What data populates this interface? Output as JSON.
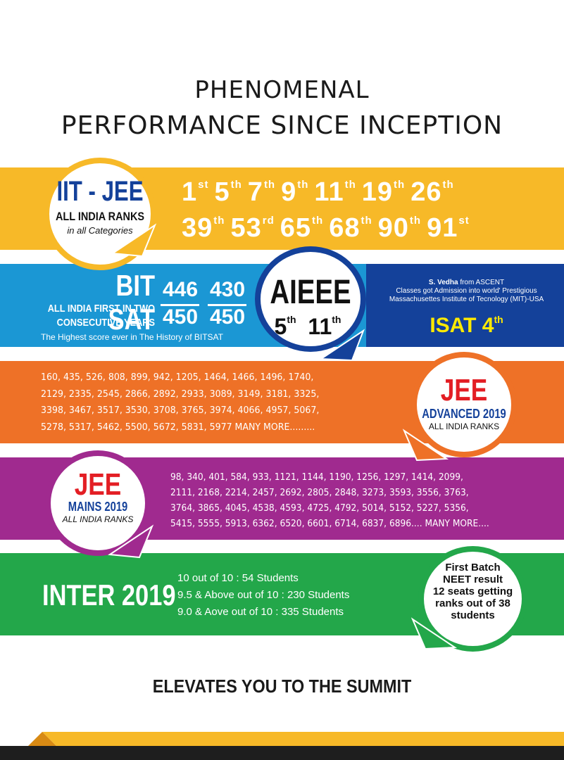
{
  "heading": {
    "line1": "PHENOMENAL",
    "line2": "PERFORMANCE  SINCE  INCEPTION"
  },
  "colors": {
    "yellow": "#f7b928",
    "sky_blue": "#1b97d4",
    "navy": "#14419a",
    "orange": "#ee7127",
    "purple": "#a02a8f",
    "green": "#23a74a",
    "red": "#e31e24"
  },
  "iit_jee": {
    "title": "IIT - JEE",
    "subtitle": "ALL INDIA RANKS",
    "note": "in all Categories",
    "ranks_row1": [
      {
        "n": "1",
        "s": "st"
      },
      {
        "n": "5",
        "s": "th"
      },
      {
        "n": "7",
        "s": "th"
      },
      {
        "n": "9",
        "s": "th"
      },
      {
        "n": "11",
        "s": "th"
      },
      {
        "n": "19",
        "s": "th"
      },
      {
        "n": "26",
        "s": "th"
      }
    ],
    "ranks_row2": [
      {
        "n": "39",
        "s": "th"
      },
      {
        "n": "53",
        "s": "rd"
      },
      {
        "n": "65",
        "s": "th"
      },
      {
        "n": "68",
        "s": "th"
      },
      {
        "n": "90",
        "s": "th"
      },
      {
        "n": "91",
        "s": "st"
      }
    ]
  },
  "bitsat": {
    "title": "BIT SAT",
    "sub1": "ALL INDIA FIRST IN TWO",
    "sub2": "CONSECUTIVE YEARS",
    "note": "The Highest score ever in The History of BITSAT",
    "score1_top": "446",
    "score1_bottom": "450",
    "score2_top": "430",
    "score2_bottom": "450"
  },
  "aieee": {
    "title": "AIEEE",
    "rank1": "5",
    "rank1_suffix": "th",
    "rank2": "11",
    "rank2_suffix": "th"
  },
  "mit": {
    "line1_name": "S. Vedha",
    "line1_rest": " from ASCENT",
    "line2": "Classes got Admission into world' Prestigious",
    "line3": "Massachusettes Institute of Tecnology (MIT)-USA",
    "isat": "ISAT 4",
    "isat_suffix": "th"
  },
  "jee_advanced": {
    "title": "JEE",
    "sub1": "ADVANCED 2019",
    "sub2": "ALL INDIA RANKS",
    "lines": [
      "160,  435,  526,  808,  899,  942,  1205,  1464,  1466,  1496,  1740,",
      "2129,  2335,  2545,  2866,  2892,  2933,  3089,  3149,  3181,  3325,",
      "3398,  3467,  3517,  3530,  3708,  3765,  3974,  4066,  4957,  5067,",
      "5278,  5317,  5462,  5500,  5672,  5831,  5977  MANY MORE........."
    ]
  },
  "jee_mains": {
    "title": "JEE",
    "sub1": "MAINS 2019",
    "sub2": "ALL INDIA RANKS",
    "lines": [
      "98,  340,  401,  584,  933,  1121,  1144,  1190,  1256,  1297,  1414,  2099,",
      "2111,  2168,  2214,  2457,  2692,  2805,  2848,  3273,  3593,  3556,  3763,",
      "3764,  3865,  4045,  4538,  4593,  4725, 4792,  5014,  5152,  5227,  5356,",
      "5415,  5555,  5913,  6362,  6520, 6601, 6714, 6837, 6896.... MANY MORE...."
    ]
  },
  "inter": {
    "title": "INTER 2019",
    "lines": [
      "10 out of 10 : 54 Students",
      "9.5 & Above out of 10 : 230 Students",
      "9.0 & Aove out of 10 : 335 Students"
    ]
  },
  "neet": {
    "line1": "First Batch",
    "line2": "NEET result",
    "line3": "12 seats getting",
    "line4": "ranks out of 38",
    "line5": "students"
  },
  "tagline": "ELEVATES YOU TO THE SUMMIT"
}
